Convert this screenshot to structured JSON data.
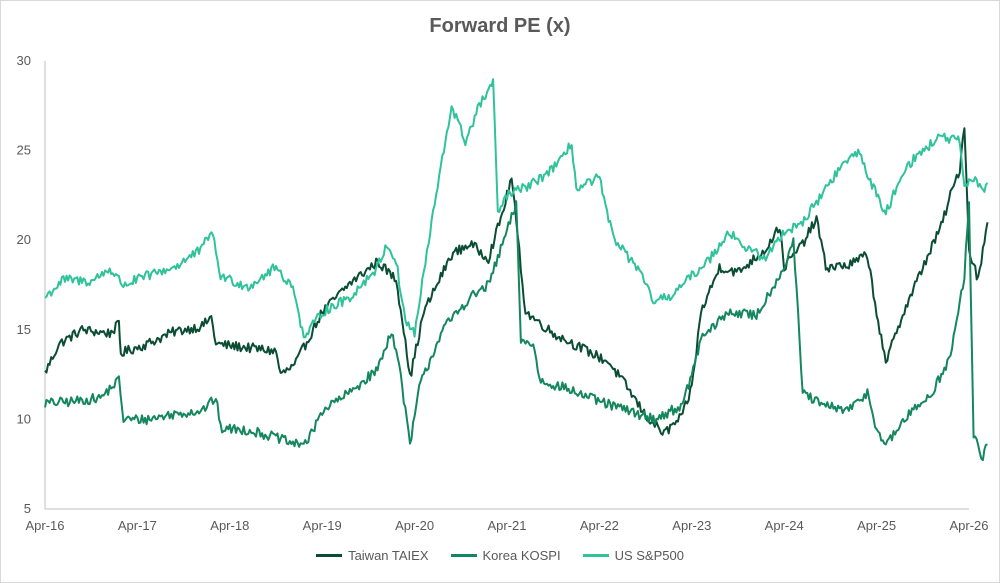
{
  "chart_data": {
    "type": "line",
    "title": "Forward PE (x)",
    "xlabel": "",
    "ylabel": "",
    "ylim": [
      5,
      30
    ],
    "yticks": [
      "5",
      "10",
      "15",
      "20",
      "25",
      "30"
    ],
    "xticks": [
      "Apr-16",
      "Apr-17",
      "Apr-18",
      "Apr-19",
      "Apr-20",
      "Apr-21",
      "Apr-22",
      "Apr-23",
      "Apr-24",
      "Apr-25",
      "Apr-26"
    ],
    "grid": false,
    "legend_position": "bottom",
    "series": [
      {
        "name": "Taiwan TAIEX",
        "color": "#0b4d33",
        "points": [
          [
            0,
            12.6
          ],
          [
            0.15,
            14.2
          ],
          [
            0.4,
            15.0
          ],
          [
            0.7,
            14.8
          ],
          [
            0.8,
            15.3
          ],
          [
            0.82,
            13.7
          ],
          [
            1.1,
            14.2
          ],
          [
            1.4,
            14.9
          ],
          [
            1.7,
            15.2
          ],
          [
            1.8,
            15.7
          ],
          [
            1.85,
            14.2
          ],
          [
            2.2,
            14.0
          ],
          [
            2.5,
            13.8
          ],
          [
            2.55,
            12.5
          ],
          [
            2.7,
            13.0
          ],
          [
            3.0,
            16.0
          ],
          [
            3.3,
            17.6
          ],
          [
            3.6,
            18.8
          ],
          [
            3.8,
            17.8
          ],
          [
            3.9,
            14.5
          ],
          [
            3.95,
            12.3
          ],
          [
            4.1,
            16.0
          ],
          [
            4.4,
            19.2
          ],
          [
            4.6,
            19.8
          ],
          [
            4.8,
            19.0
          ],
          [
            4.95,
            21.5
          ],
          [
            5.05,
            23.5
          ],
          [
            5.1,
            21.0
          ],
          [
            5.2,
            16.0
          ],
          [
            5.5,
            14.8
          ],
          [
            5.8,
            14.0
          ],
          [
            6.1,
            13.2
          ],
          [
            6.3,
            11.8
          ],
          [
            6.5,
            10.2
          ],
          [
            6.7,
            9.2
          ],
          [
            6.9,
            10.2
          ],
          [
            7.0,
            11.8
          ],
          [
            7.1,
            16.0
          ],
          [
            7.3,
            18.5
          ],
          [
            7.5,
            18.2
          ],
          [
            7.8,
            19.5
          ],
          [
            7.95,
            20.8
          ],
          [
            8.0,
            18.5
          ],
          [
            8.2,
            19.8
          ],
          [
            8.35,
            21.2
          ],
          [
            8.45,
            18.5
          ],
          [
            8.7,
            18.6
          ],
          [
            8.9,
            19.2
          ],
          [
            9.0,
            16.0
          ],
          [
            9.1,
            13.0
          ],
          [
            9.2,
            14.8
          ],
          [
            9.5,
            18.5
          ],
          [
            9.7,
            20.8
          ],
          [
            9.8,
            22.5
          ],
          [
            9.9,
            24.0
          ],
          [
            9.95,
            26.5
          ],
          [
            10.0,
            19.5
          ],
          [
            10.1,
            17.8
          ],
          [
            10.2,
            21.0
          ]
        ]
      },
      {
        "name": "Korea KOSPI",
        "color": "#14875e",
        "points": [
          [
            0,
            10.9
          ],
          [
            0.3,
            11.0
          ],
          [
            0.6,
            11.2
          ],
          [
            0.8,
            12.2
          ],
          [
            0.85,
            10.0
          ],
          [
            1.1,
            10.0
          ],
          [
            1.4,
            10.3
          ],
          [
            1.7,
            10.5
          ],
          [
            1.85,
            11.2
          ],
          [
            1.9,
            9.5
          ],
          [
            2.2,
            9.4
          ],
          [
            2.5,
            9.0
          ],
          [
            2.7,
            8.6
          ],
          [
            2.85,
            8.8
          ],
          [
            3.0,
            10.5
          ],
          [
            3.3,
            11.5
          ],
          [
            3.6,
            12.8
          ],
          [
            3.75,
            15.0
          ],
          [
            3.85,
            12.5
          ],
          [
            3.95,
            8.5
          ],
          [
            4.05,
            11.8
          ],
          [
            4.3,
            15.0
          ],
          [
            4.6,
            16.8
          ],
          [
            4.8,
            17.5
          ],
          [
            5.0,
            20.5
          ],
          [
            5.1,
            22.0
          ],
          [
            5.15,
            14.5
          ],
          [
            5.3,
            14.0
          ],
          [
            5.35,
            12.2
          ],
          [
            5.6,
            11.8
          ],
          [
            6.0,
            11.0
          ],
          [
            6.3,
            10.5
          ],
          [
            6.6,
            10.0
          ],
          [
            6.9,
            10.8
          ],
          [
            7.0,
            12.5
          ],
          [
            7.1,
            14.5
          ],
          [
            7.4,
            16.0
          ],
          [
            7.7,
            15.8
          ],
          [
            8.0,
            18.5
          ],
          [
            8.1,
            20.0
          ],
          [
            8.2,
            11.5
          ],
          [
            8.4,
            10.8
          ],
          [
            8.7,
            10.5
          ],
          [
            8.9,
            11.5
          ],
          [
            9.0,
            9.5
          ],
          [
            9.1,
            8.5
          ],
          [
            9.3,
            10.0
          ],
          [
            9.6,
            11.5
          ],
          [
            9.8,
            13.5
          ],
          [
            9.95,
            18.0
          ],
          [
            10.0,
            22.0
          ],
          [
            10.05,
            9.2
          ],
          [
            10.15,
            7.8
          ],
          [
            10.2,
            8.6
          ]
        ]
      },
      {
        "name": "US S&P500",
        "color": "#30c29b",
        "points": [
          [
            0,
            16.8
          ],
          [
            0.2,
            17.8
          ],
          [
            0.5,
            17.7
          ],
          [
            0.7,
            18.4
          ],
          [
            0.85,
            17.5
          ],
          [
            1.1,
            18.0
          ],
          [
            1.4,
            18.5
          ],
          [
            1.7,
            19.5
          ],
          [
            1.8,
            20.6
          ],
          [
            1.9,
            18.0
          ],
          [
            2.2,
            17.4
          ],
          [
            2.5,
            18.5
          ],
          [
            2.7,
            17.2
          ],
          [
            2.8,
            14.5
          ],
          [
            3.0,
            16.0
          ],
          [
            3.3,
            16.8
          ],
          [
            3.6,
            18.5
          ],
          [
            3.7,
            19.8
          ],
          [
            3.8,
            18.8
          ],
          [
            3.9,
            15.5
          ],
          [
            4.0,
            14.8
          ],
          [
            4.2,
            21.5
          ],
          [
            4.4,
            27.5
          ],
          [
            4.55,
            25.5
          ],
          [
            4.7,
            27.5
          ],
          [
            4.85,
            28.8
          ],
          [
            4.9,
            21.5
          ],
          [
            5.0,
            22.5
          ],
          [
            5.3,
            23.2
          ],
          [
            5.6,
            24.5
          ],
          [
            5.7,
            25.5
          ],
          [
            5.75,
            22.8
          ],
          [
            6.0,
            23.5
          ],
          [
            6.1,
            21.0
          ],
          [
            6.2,
            19.8
          ],
          [
            6.4,
            18.5
          ],
          [
            6.6,
            16.5
          ],
          [
            6.8,
            17.0
          ],
          [
            7.0,
            18.0
          ],
          [
            7.2,
            19.0
          ],
          [
            7.4,
            20.5
          ],
          [
            7.6,
            19.5
          ],
          [
            7.8,
            19.0
          ],
          [
            8.0,
            20.5
          ],
          [
            8.2,
            21.0
          ],
          [
            8.4,
            22.5
          ],
          [
            8.6,
            24.0
          ],
          [
            8.8,
            25.0
          ],
          [
            9.0,
            22.5
          ],
          [
            9.1,
            21.5
          ],
          [
            9.3,
            24.0
          ],
          [
            9.5,
            25.0
          ],
          [
            9.7,
            25.8
          ],
          [
            9.9,
            25.5
          ],
          [
            9.95,
            22.8
          ],
          [
            10.05,
            23.5
          ],
          [
            10.15,
            22.8
          ],
          [
            10.2,
            23.2
          ]
        ]
      }
    ]
  }
}
